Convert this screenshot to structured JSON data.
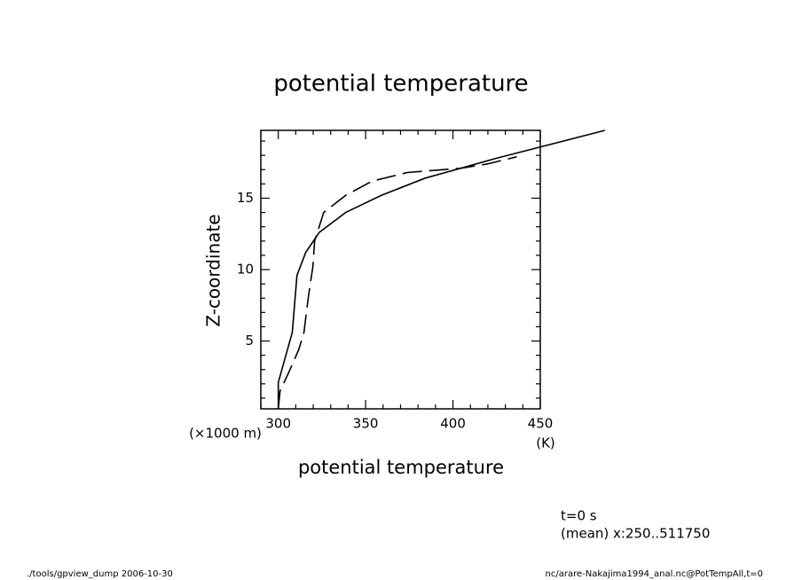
{
  "chart_data": {
    "type": "line",
    "title": "potential temperature",
    "x_label": "potential temperature",
    "y_label": "Z-coordinate",
    "y_unit": "(×1000 m)",
    "x_unit": "(K)",
    "annotations": [
      "t=0 s",
      "(mean) x:250..511750"
    ],
    "footer_left": "./tools/gpview_dump  2006-10-30",
    "footer_right": "nc/arare-Nakajima1994_anal.nc@PotTempAll,t=0",
    "xlim": [
      290,
      450
    ],
    "ylim": [
      0.25,
      19.75
    ],
    "xticks": [
      300,
      350,
      400,
      450
    ],
    "yticks": [
      5,
      10,
      15
    ],
    "xminor": [
      290,
      310,
      320,
      330,
      340,
      360,
      370,
      380,
      390,
      410,
      420,
      430,
      440
    ],
    "yminor": [
      1,
      2,
      3,
      4,
      6,
      7,
      8,
      9,
      11,
      12,
      13,
      14,
      16,
      17,
      18,
      19
    ],
    "series": [
      {
        "color": "#000000",
        "dash": false,
        "x": [
          300,
          300,
          308,
          310.7,
          315.7,
          323.4,
          338.6,
          359,
          384,
          425,
          487
        ],
        "values": [
          0.25,
          2.1,
          5.6,
          9.6,
          11.2,
          12.6,
          14,
          15.2,
          16.4,
          17.8,
          19.75
        ]
      },
      {
        "color": "#000000",
        "dash": true,
        "x": [
          300,
          301,
          306,
          311.7,
          314.7,
          316.8,
          318.3,
          319.8,
          320.8,
          326,
          338.6,
          353.8,
          374,
          404.6,
          419.8,
          436.5
        ],
        "values": [
          0.25,
          1.5,
          2.8,
          4.4,
          5.6,
          7.7,
          9,
          10.2,
          12,
          14,
          15.2,
          16.2,
          16.8,
          17.1,
          17.4,
          17.9
        ]
      }
    ]
  }
}
